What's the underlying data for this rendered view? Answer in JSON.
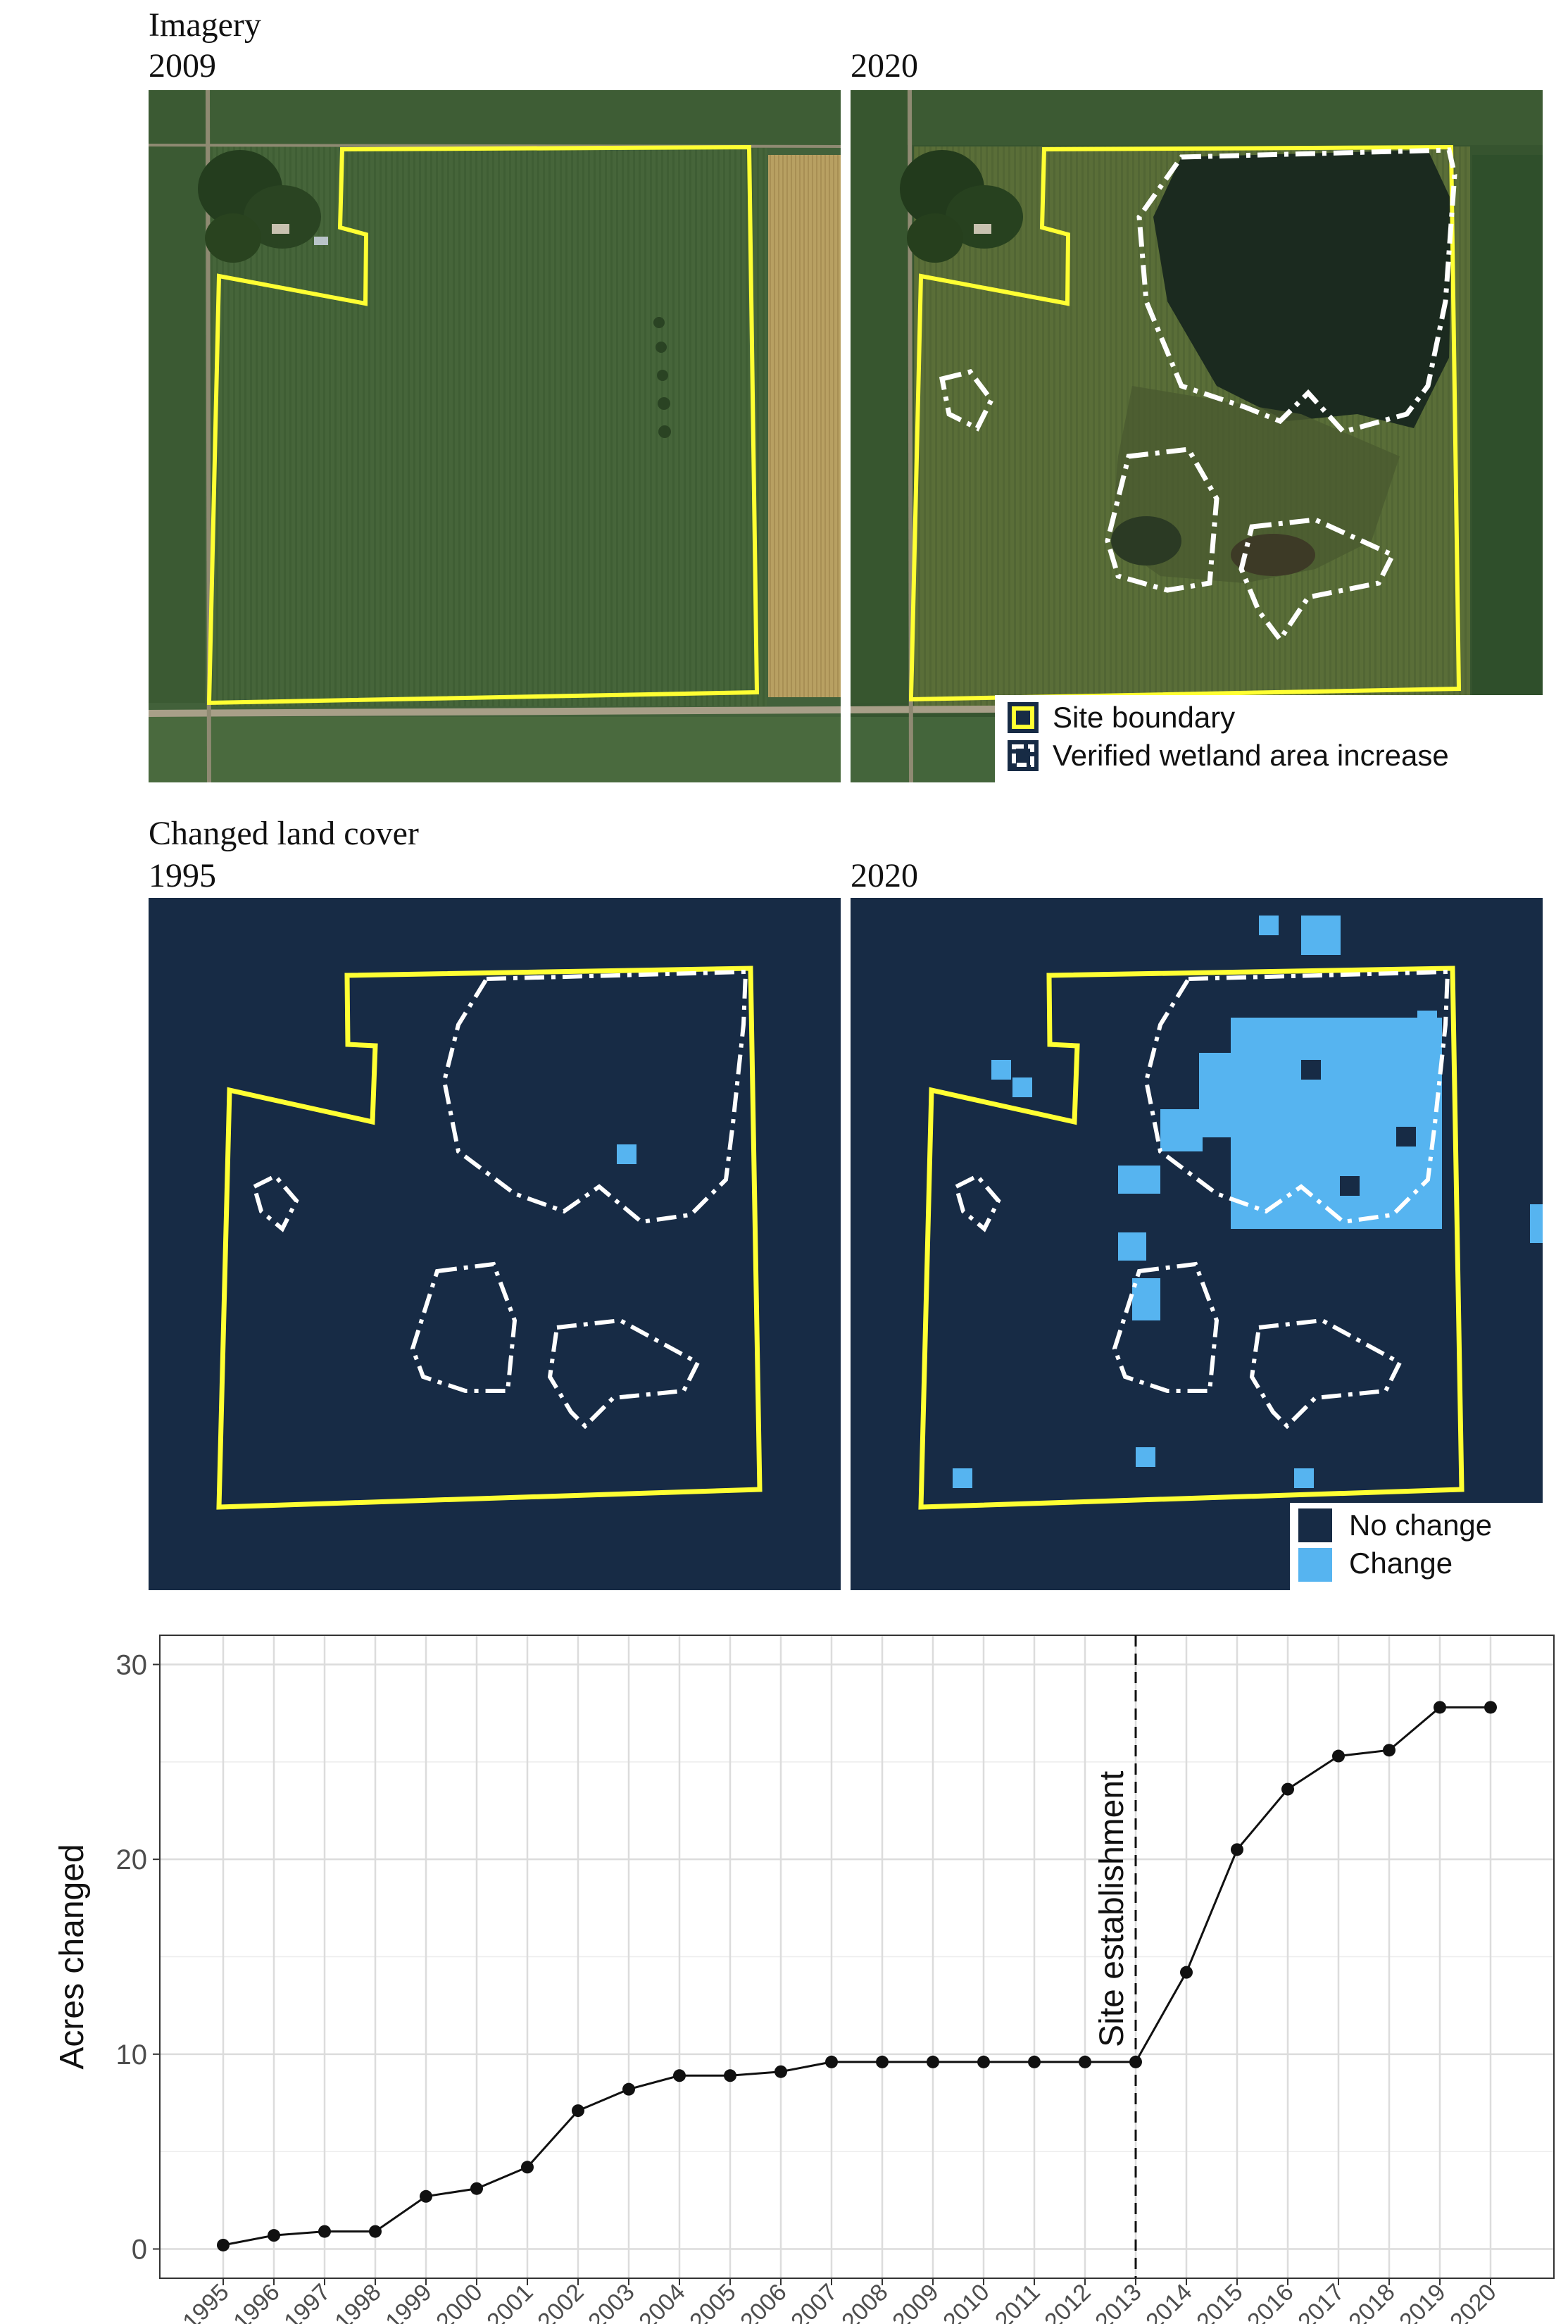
{
  "imagery": {
    "section_title": "Imagery",
    "left_year": "2009",
    "right_year": "2020",
    "colors": {
      "field_dark": "#3a5a30",
      "field_mid": "#4f6b3a",
      "crop_tan": "#b59a5a",
      "site_boundary": "#ffff33",
      "wetland_line": "#ffffff",
      "water": "#1c2a20"
    }
  },
  "legend_imagery": {
    "items": [
      {
        "label": "Site boundary",
        "icon": "yellow-square-icon"
      },
      {
        "label": "Verified wetland area increase",
        "icon": "white-dashed-square-icon"
      }
    ]
  },
  "landcover": {
    "section_title": "Changed land cover",
    "left_year": "1995",
    "right_year": "2020",
    "colors": {
      "no_change": "#172b45",
      "change": "#56b4f0"
    }
  },
  "legend_landcover": {
    "items": [
      {
        "label": "No change",
        "color": "#172b45"
      },
      {
        "label": "Change",
        "color": "#56b4f0"
      }
    ]
  },
  "chart_data": {
    "type": "line",
    "ylabel": "Acres changed",
    "xlabel": "",
    "ylim": [
      -1.5,
      31.5
    ],
    "yticks": [
      0,
      10,
      20,
      30
    ],
    "grid": true,
    "annotation": {
      "x": "2013",
      "label": "Site establishment",
      "style": "dashed-vertical-line"
    },
    "x": [
      "1995",
      "1996",
      "1997",
      "1998",
      "1999",
      "2000",
      "2001",
      "2002",
      "2003",
      "2004",
      "2005",
      "2006",
      "2007",
      "2008",
      "2009",
      "2010",
      "2011",
      "2012",
      "2013",
      "2014",
      "2015",
      "2016",
      "2017",
      "2018",
      "2019",
      "2020"
    ],
    "series": [
      {
        "values": [
          0.2,
          0.7,
          0.9,
          0.9,
          2.7,
          3.1,
          4.2,
          7.1,
          8.2,
          8.9,
          8.9,
          9.1,
          9.6,
          9.6,
          9.6,
          9.6,
          9.6,
          9.6,
          9.6,
          14.2,
          20.5,
          23.6,
          25.3,
          25.6,
          27.8,
          27.8
        ]
      }
    ]
  }
}
